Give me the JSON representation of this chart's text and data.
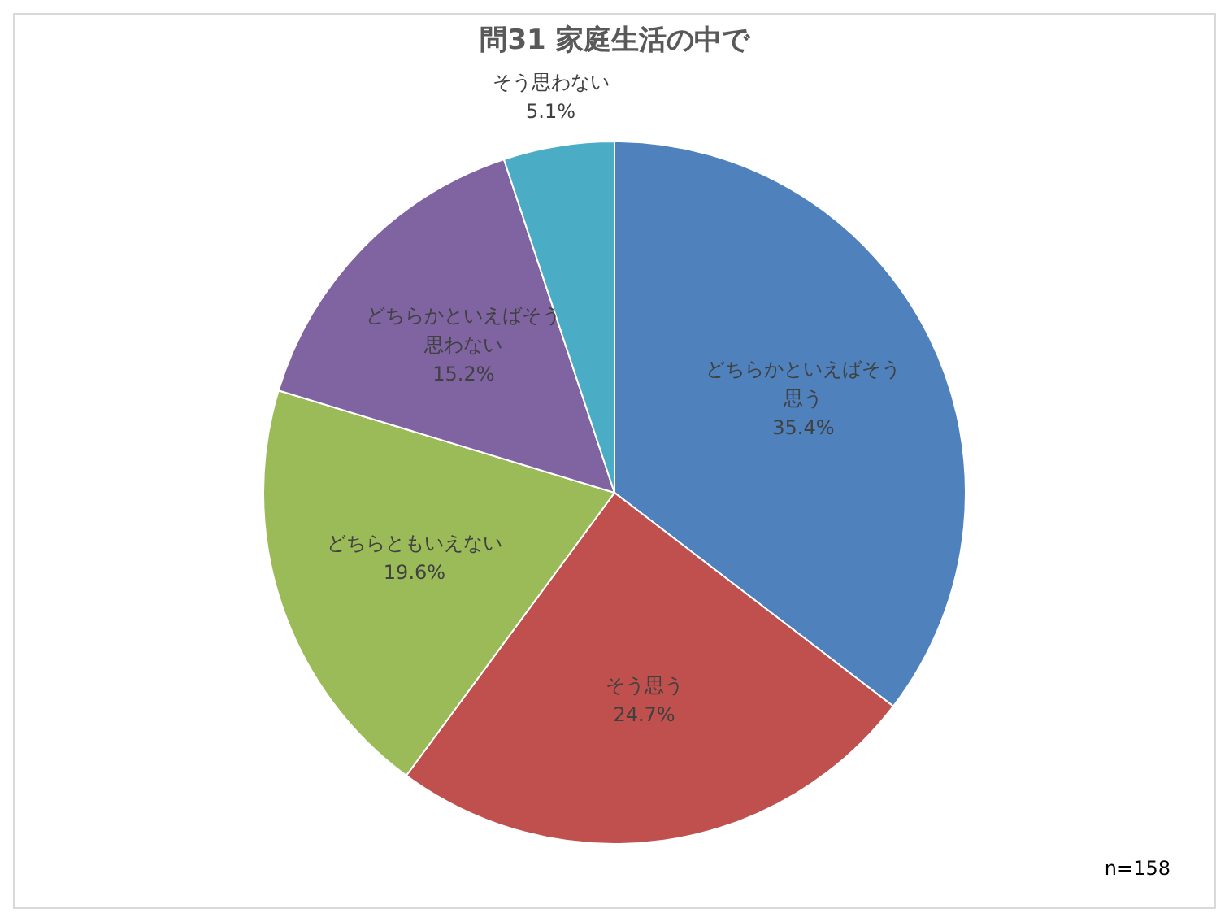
{
  "chart_data": {
    "type": "pie",
    "title": "問31  家庭生活の中で",
    "categories": [
      "どちらかといえばそう思う",
      "そう思う",
      "どちらともいえない",
      "どちらかといえばそう思わない",
      "そう思わない"
    ],
    "values": [
      35.4,
      24.7,
      19.6,
      15.2,
      5.1
    ],
    "colors": [
      "#4f81bd",
      "#c0504d",
      "#9bbb59",
      "#8064a2",
      "#4bacc6"
    ],
    "value_labels": [
      "35.4%",
      "24.7%",
      "19.6%",
      "15.2%",
      "5.1%"
    ],
    "annotations": [
      "n=158"
    ]
  }
}
